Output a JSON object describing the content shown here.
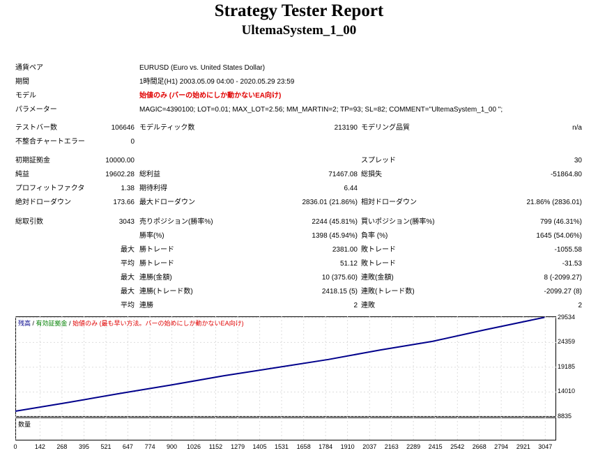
{
  "title": "Strategy Tester Report",
  "subtitle": "UltemaSystem_1_00",
  "info": {
    "pair_label": "通貨ペア",
    "pair_value": "EURUSD (Euro vs. United States Dollar)",
    "period_label": "期間",
    "period_value": "1時間足(H1) 2003.05.09 04:00 - 2020.05.29 23:59",
    "model_label": "モデル",
    "model_value": "始値のみ (バーの始めにしか動かないEA向け)",
    "params_label": "パラメーター",
    "params_value": "MAGIC=4390100; LOT=0.01; MAX_LOT=2.56; MM_MARTIN=2; TP=93; SL=82; COMMENT=\"UltemaSystem_1_00 \";"
  },
  "stats": {
    "bars_label": "テストバー数",
    "bars_value": "106646",
    "ticks_label": "モデルティック数",
    "ticks_value": "213190",
    "quality_label": "モデリング品質",
    "quality_value": "n/a",
    "mismatch_label": "不整合チャートエラー",
    "mismatch_value": "0",
    "deposit_label": "初期証拠金",
    "deposit_value": "10000.00",
    "spread_label": "スプレッド",
    "spread_value": "30",
    "net_label": "純益",
    "net_value": "19602.28",
    "gross_profit_label": "総利益",
    "gross_profit_value": "71467.08",
    "gross_loss_label": "総損失",
    "gross_loss_value": "-51864.80",
    "pf_label": "プロフィットファクタ",
    "pf_value": "1.38",
    "expected_label": "期待利得",
    "expected_value": "6.44",
    "abs_dd_label": "絶対ドローダウン",
    "abs_dd_value": "173.66",
    "max_dd_label": "最大ドローダウン",
    "max_dd_value": "2836.01 (21.86%)",
    "rel_dd_label": "相対ドローダウン",
    "rel_dd_value": "21.86% (2836.01)",
    "trades_label": "総取引数",
    "trades_value": "3043",
    "short_label": "売りポジション(勝率%)",
    "short_value": "2244 (45.81%)",
    "long_label": "買いポジション(勝率%)",
    "long_value": "799 (46.31%)",
    "winrate_label": "勝率(%)",
    "winrate_value": "1398 (45.94%)",
    "lossrate_label": "負率 (%)",
    "lossrate_value": "1645 (54.06%)",
    "max1_label": "最大",
    "max_win_label": "勝トレード",
    "max_win_value": "2381.00",
    "max_loss_label": "敗トレード",
    "max_loss_value": "-1055.58",
    "avg1_label": "平均",
    "avg_win_label": "勝トレード",
    "avg_win_value": "51.12",
    "avg_loss_label": "敗トレード",
    "avg_loss_value": "-31.53",
    "max2_label": "最大",
    "cons_win_amt_label": "連勝(金額)",
    "cons_win_amt_value": "10 (375.60)",
    "cons_loss_amt_label": "連敗(金額)",
    "cons_loss_amt_value": "8 (-2099.27)",
    "max3_label": "最大",
    "cons_win_cnt_label": "連勝(トレード数)",
    "cons_win_cnt_value": "2418.15 (5)",
    "cons_loss_cnt_label": "連敗(トレード数)",
    "cons_loss_cnt_value": "-2099.27 (8)",
    "avg2_label": "平均",
    "avg_cons_win_label": "連勝",
    "avg_cons_win_value": "2",
    "avg_cons_loss_label": "連敗",
    "avg_cons_loss_value": "2"
  },
  "chart": {
    "legend_balance": "残高",
    "legend_sep1": " / ",
    "legend_equity": "有効証拠金",
    "legend_sep2": " / ",
    "legend_model": "始値のみ (最も早い方法。バーの始めにしか動かないEA向け)",
    "volume_label": "数量",
    "colors": {
      "balance": "#00008b",
      "equity": "#008000",
      "model": "#e00000"
    }
  },
  "chart_data": {
    "type": "line",
    "title": "",
    "series": [
      {
        "name": "残高",
        "x": [
          0,
          300,
          600,
          900,
          1200,
          1500,
          1800,
          2100,
          2400,
          2700,
          3043
        ],
        "values": [
          10000,
          11800,
          13700,
          15500,
          17400,
          19100,
          20800,
          22800,
          24600,
          27000,
          29602
        ]
      }
    ],
    "y_ticks": [
      "29534",
      "24359",
      "19185",
      "14010",
      "8835"
    ],
    "x_ticks": [
      "0",
      "142",
      "268",
      "395",
      "521",
      "647",
      "774",
      "900",
      "1026",
      "1152",
      "1279",
      "1405",
      "1531",
      "1658",
      "1784",
      "1910",
      "2037",
      "2163",
      "2289",
      "2415",
      "2542",
      "2668",
      "2794",
      "2921",
      "3047"
    ],
    "ylim": [
      8835,
      29800
    ],
    "xlim": [
      0,
      3110
    ]
  }
}
